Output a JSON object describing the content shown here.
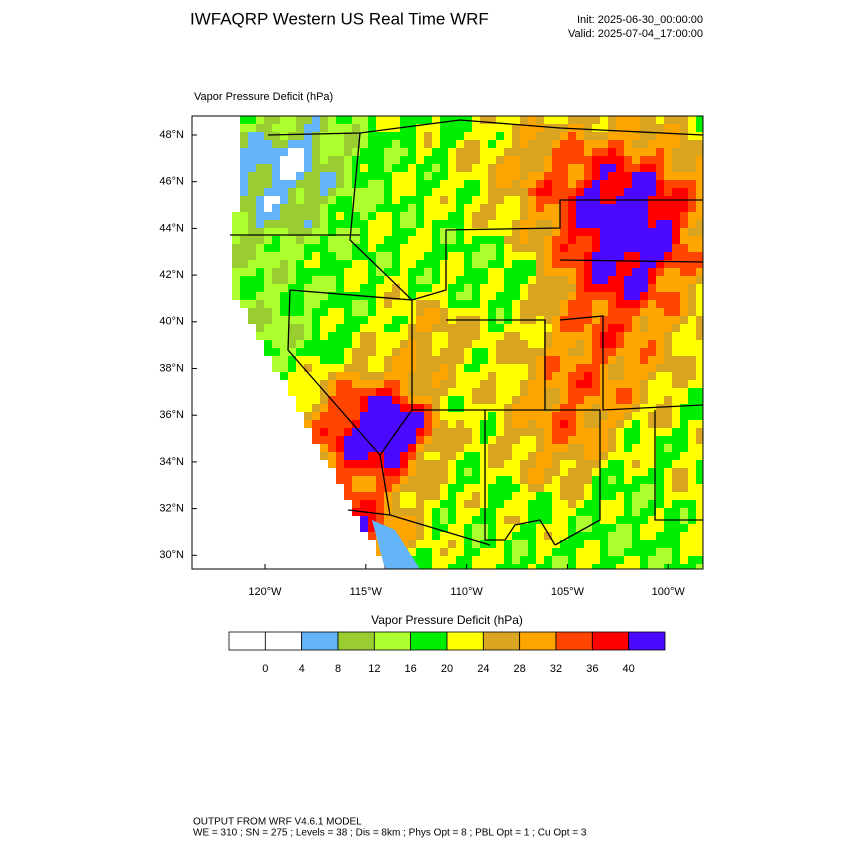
{
  "header": {
    "title": "IWFAQRP Western US Real Time WRF",
    "init": "Init: 2025-06-30_00:00:00",
    "valid": "Valid: 2025-07-04_17:00:00"
  },
  "map": {
    "field_label": "Vapor Pressure Deficit   (hPa)",
    "lat_labels": [
      "48°N",
      "46°N",
      "44°N",
      "42°N",
      "40°N",
      "38°N",
      "36°N",
      "34°N",
      "32°N",
      "30°N"
    ],
    "lon_labels": [
      "120°W",
      "115°W",
      "110°W",
      "105°W",
      "100°W"
    ]
  },
  "colorbar": {
    "title": "Vapor Pressure Deficit  (hPa)",
    "levels": [
      0,
      4,
      8,
      12,
      16,
      20,
      24,
      28,
      32,
      36,
      40
    ],
    "colors": [
      "#ffffff",
      "#ffffff",
      "#63b4f9",
      "#9acd32",
      "#adff2f",
      "#00ee00",
      "#ffff00",
      "#daa520",
      "#ffa500",
      "#ff4500",
      "#ff0000",
      "#4b0aff"
    ]
  },
  "footer": {
    "line1": "OUTPUT FROM WRF V4.6.1 MODEL",
    "line2": "WE = 310 ; SN = 275 ; Levels = 38 ; Dis = 8km ; Phys Opt = 8 ; PBL Opt = 1 ; Cu Opt = 3"
  }
}
